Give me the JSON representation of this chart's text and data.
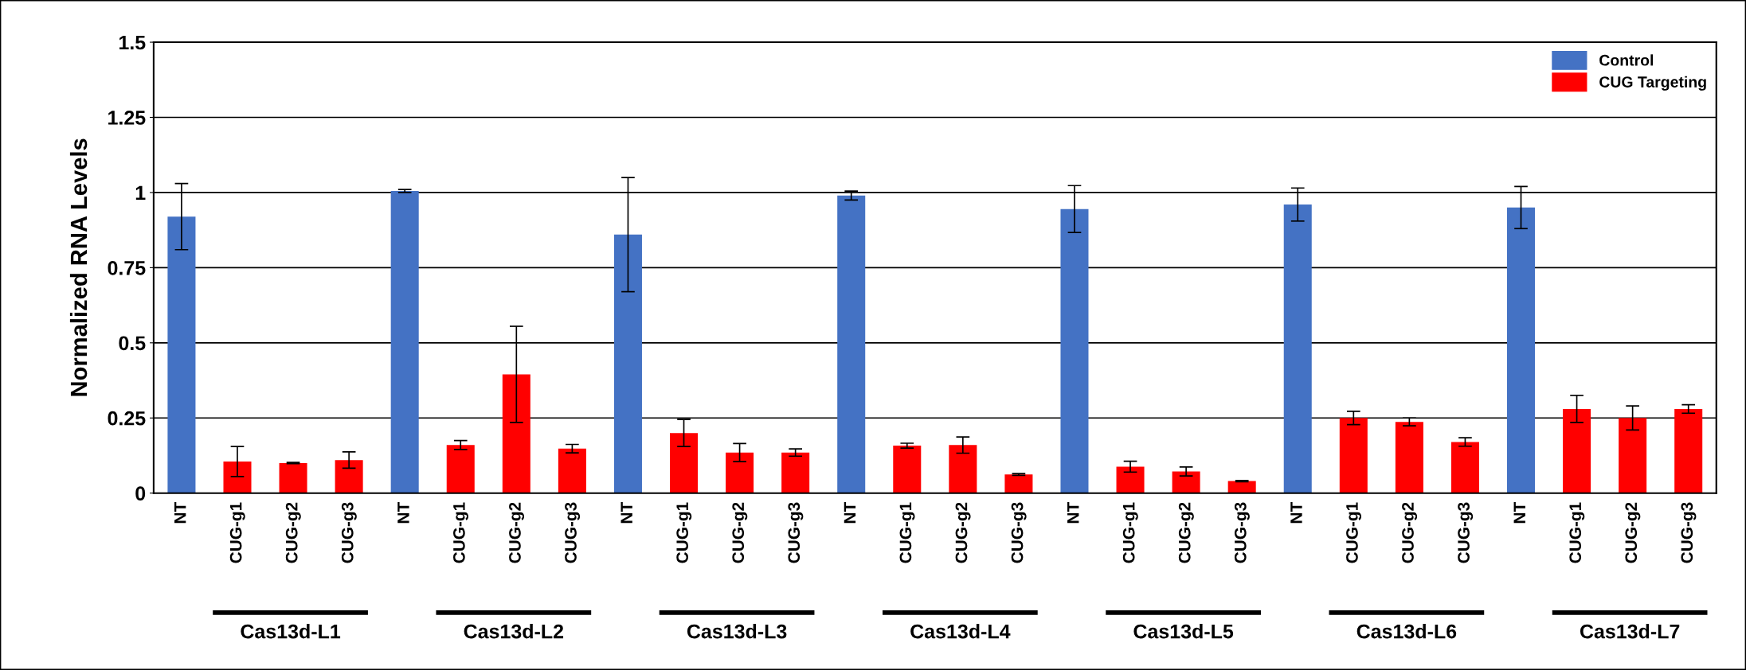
{
  "chart_data": {
    "type": "bar",
    "ylabel": "Normalized RNA Levels",
    "categories": [
      "NT",
      "CUG-g1",
      "CUG-g2",
      "CUG-g3",
      "NT",
      "CUG-g1",
      "CUG-g2",
      "CUG-g3",
      "NT",
      "CUG-g1",
      "CUG-g2",
      "CUG-g3",
      "NT",
      "CUG-g1",
      "CUG-g2",
      "CUG-g3",
      "NT",
      "CUG-g1",
      "CUG-g2",
      "CUG-g3",
      "NT",
      "CUG-g1",
      "CUG-g2",
      "CUG-g3",
      "NT",
      "CUG-g1",
      "CUG-g2",
      "CUG-g3"
    ],
    "series": [
      {
        "name": "Control",
        "color": "#4472c4",
        "values": [
          0.92,
          null,
          null,
          null,
          1.005,
          null,
          null,
          null,
          0.86,
          null,
          null,
          null,
          0.99,
          null,
          null,
          null,
          0.945,
          null,
          null,
          null,
          0.96,
          null,
          null,
          null,
          0.95,
          null,
          null,
          null
        ],
        "errors": [
          0.11,
          null,
          null,
          null,
          0.005,
          null,
          null,
          null,
          0.19,
          null,
          null,
          null,
          0.015,
          null,
          null,
          null,
          0.078,
          null,
          null,
          null,
          0.055,
          null,
          null,
          null,
          0.07,
          null,
          null,
          null
        ]
      },
      {
        "name": "CUG Targeting",
        "color": "#ff0000",
        "values": [
          null,
          0.105,
          0.1,
          0.11,
          null,
          0.16,
          0.395,
          0.148,
          null,
          0.2,
          0.135,
          0.135,
          null,
          0.158,
          0.16,
          0.062,
          null,
          0.088,
          0.072,
          0.04,
          null,
          0.25,
          0.237,
          0.17,
          null,
          0.28,
          0.25,
          0.28
        ],
        "errors": [
          null,
          0.05,
          0.002,
          0.027,
          null,
          0.015,
          0.16,
          0.014,
          null,
          0.045,
          0.03,
          0.012,
          null,
          0.008,
          0.027,
          0.003,
          null,
          0.018,
          0.015,
          0.002,
          null,
          0.022,
          0.013,
          0.014,
          null,
          0.045,
          0.04,
          0.014
        ]
      }
    ],
    "ylim": [
      0,
      1.5
    ],
    "yticks": [
      0,
      0.25,
      0.5,
      0.75,
      1,
      1.25,
      1.5
    ],
    "grid": "y",
    "legend": "top right",
    "annotations": [
      "Cas13d-L1",
      "Cas13d-L2",
      "Cas13d-L3",
      "Cas13d-L4",
      "Cas13d-L5",
      "Cas13d-L6",
      "Cas13d-L7"
    ]
  }
}
